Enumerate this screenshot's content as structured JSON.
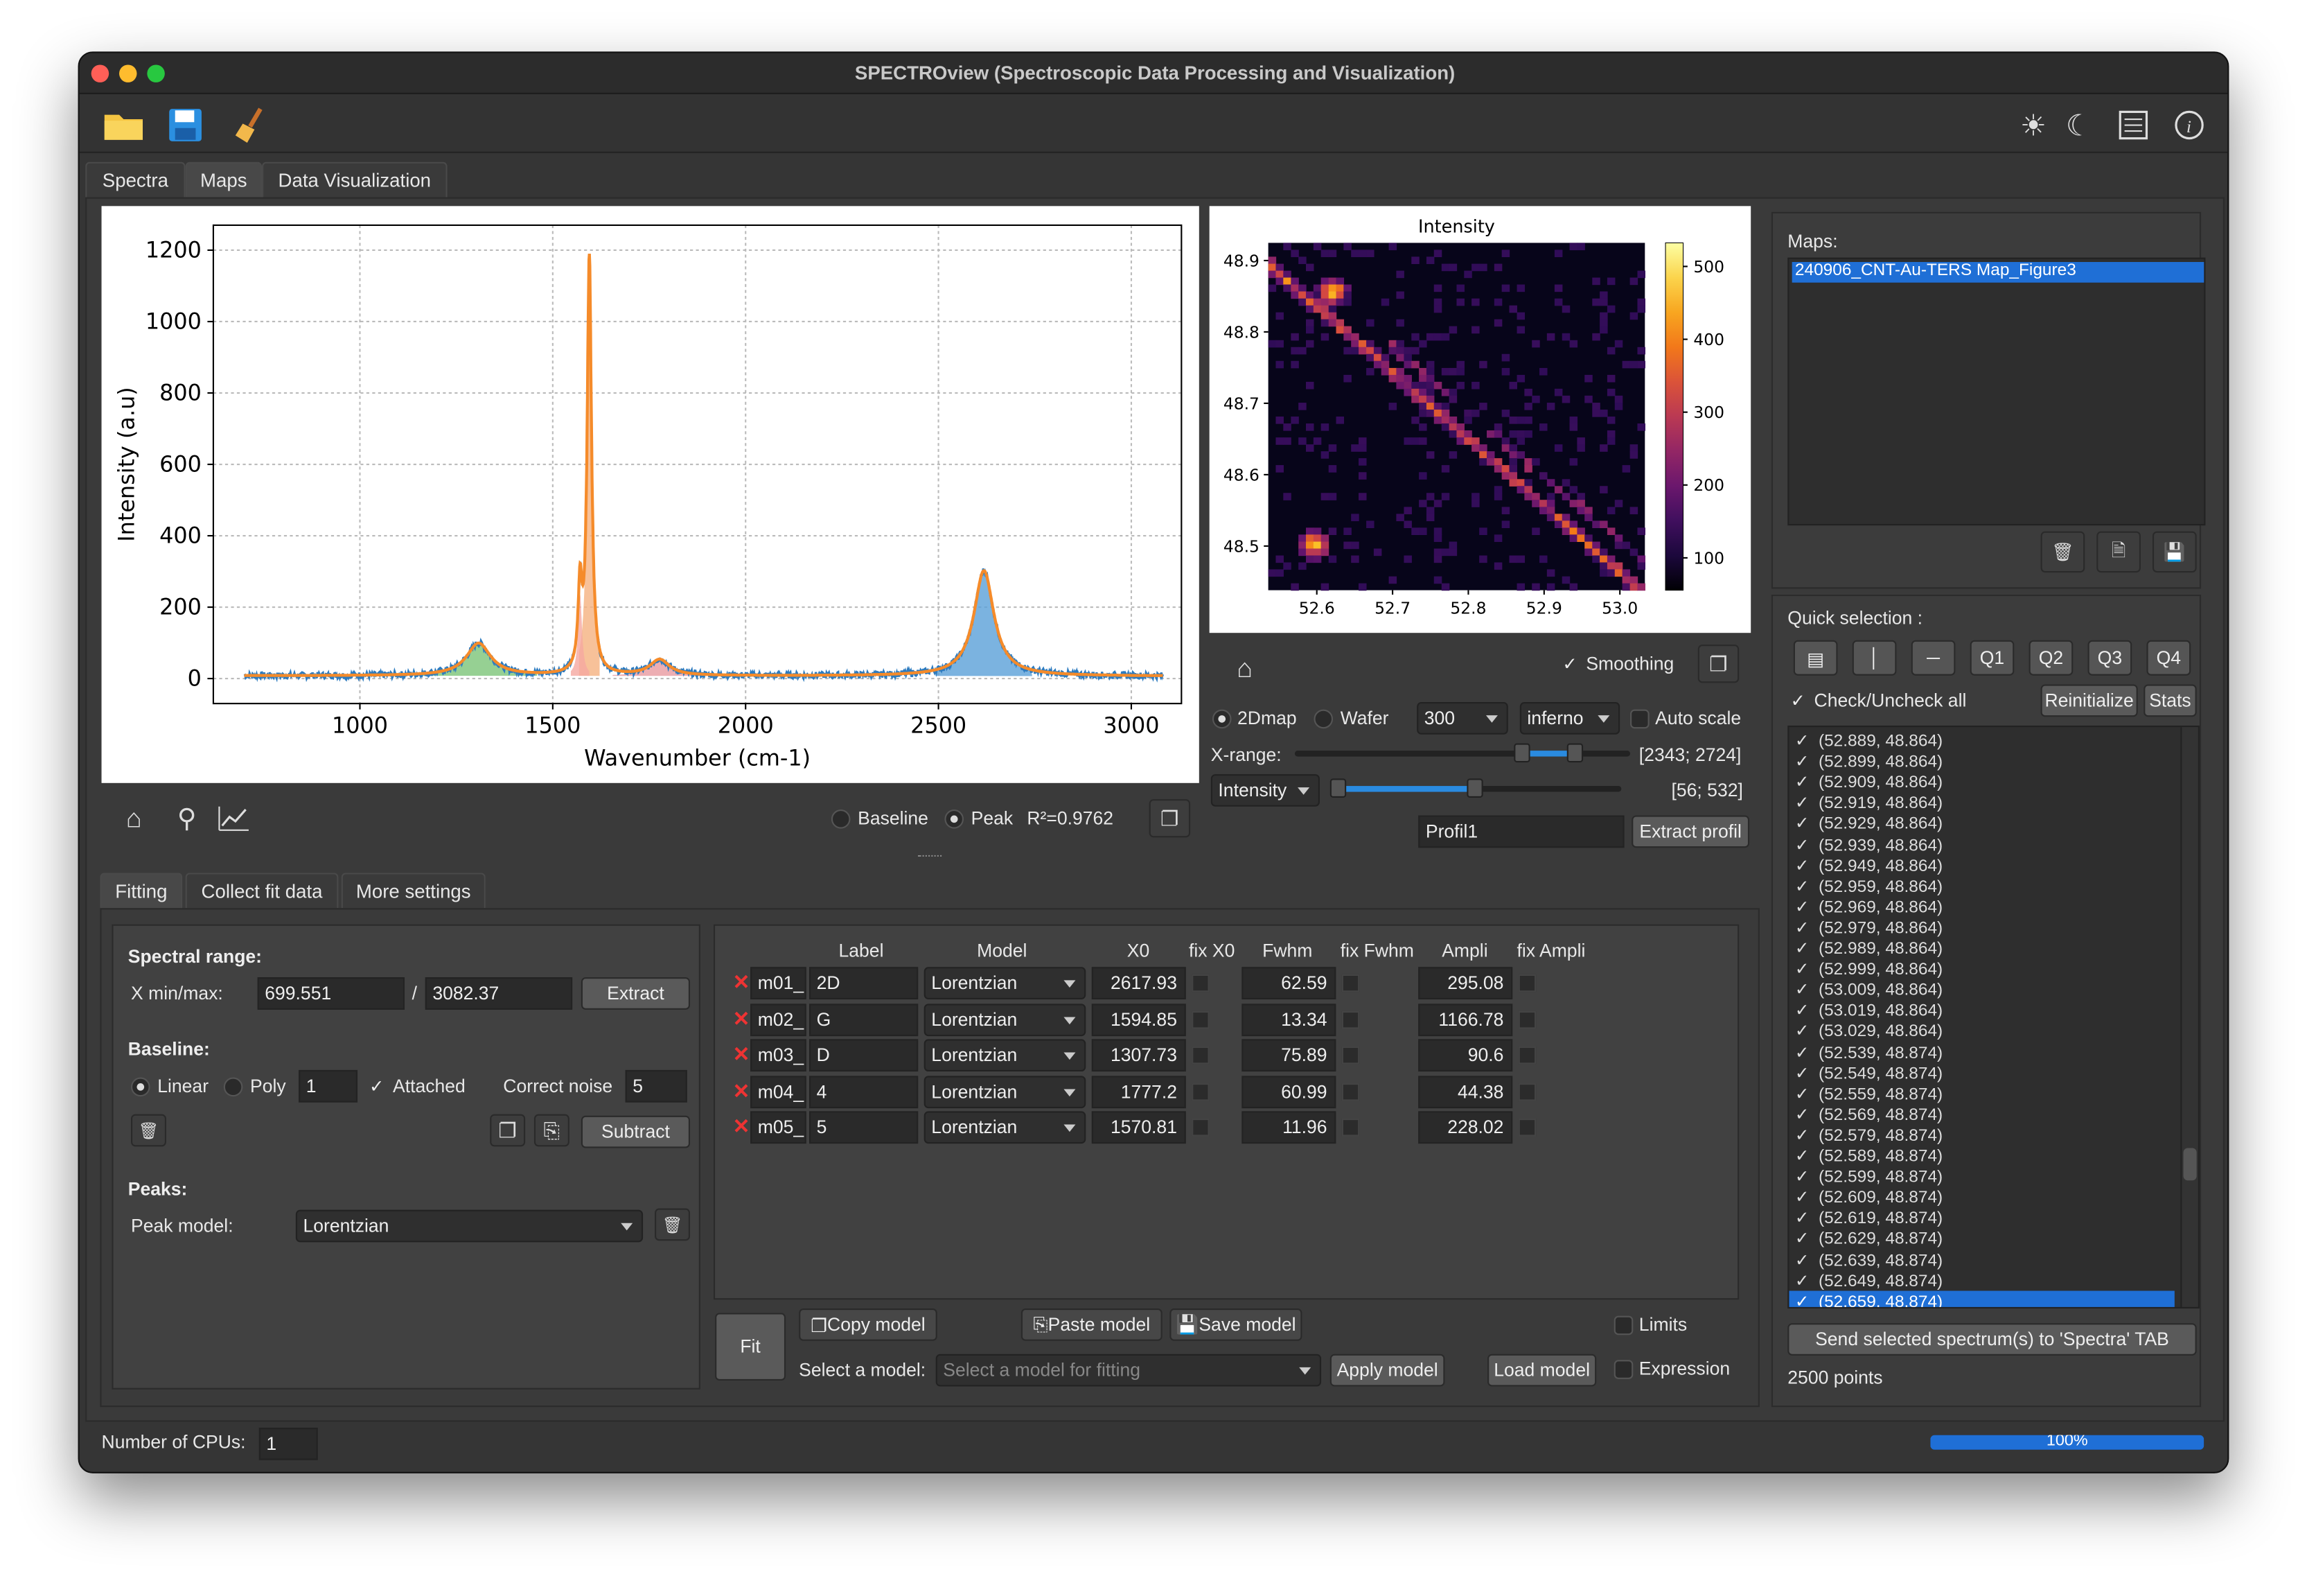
{
  "window": {
    "title": "SPECTROview (Spectroscopic Data Processing and Visualization)"
  },
  "icons": {
    "open": "folder-icon",
    "save": "save-icon",
    "clear": "broom-icon",
    "light": "sun-icon",
    "dark": "moon-icon",
    "log": "log-icon",
    "about": "info-icon"
  },
  "main_tabs": [
    "Spectra",
    "Maps",
    "Data Visualization"
  ],
  "active_main_tab": "Maps",
  "spectrum_plot": {
    "xlabel": "Wavenumber (cm-1)",
    "ylabel": "Intensity (a.u)",
    "xticks": [
      "1000",
      "1500",
      "2000",
      "2500",
      "3000"
    ],
    "yticks": [
      "0",
      "200",
      "400",
      "600",
      "800",
      "1000",
      "1200"
    ]
  },
  "spectrum_toolbar": {
    "baseline_label": "Baseline",
    "peak_label": "Peak",
    "r2": "R²=0.9762"
  },
  "heatmap": {
    "title": "Intensity",
    "yticks": [
      "48.9",
      "48.8",
      "48.7",
      "48.6",
      "48.5"
    ],
    "xticks": [
      "52.6",
      "52.7",
      "52.8",
      "52.9",
      "53.0"
    ],
    "cbar_ticks": [
      "500",
      "400",
      "300",
      "200",
      "100"
    ]
  },
  "map_controls": {
    "smoothing": "Smoothing",
    "twodmap": "2Dmap",
    "wafer": "Wafer",
    "res": "300",
    "cmap": "inferno",
    "autoscale": "Auto scale",
    "xrange_label": "X-range:",
    "xrange_value": "[2343; 2724]",
    "zcombo": "Intensity",
    "zrange_value": "[56; 532]",
    "profile_name": "Profil1",
    "extract_profile": "Extract profil"
  },
  "sub_tabs": [
    "Fitting",
    "Collect fit data",
    "More settings"
  ],
  "fitting": {
    "spectral_range": "Spectral range:",
    "xminmax": "X min/max:",
    "xmin": "699.551",
    "sep": "/",
    "xmax": "3082.37",
    "extract": "Extract",
    "baseline": "Baseline:",
    "linear": "Linear",
    "poly": "Poly",
    "poly_order": "1",
    "attached": "Attached",
    "correct_noise": "Correct noise",
    "noise_val": "5",
    "subtract": "Subtract",
    "peaks": "Peaks:",
    "peak_model_label": "Peak model:",
    "peak_model": "Lorentzian"
  },
  "peak_table": {
    "headers": [
      "Label",
      "Model",
      "X0",
      "fix X0",
      "Fwhm",
      "fix Fwhm",
      "Ampli",
      "fix Ampli"
    ],
    "rows": [
      {
        "id": "m01_",
        "label": "2D",
        "model": "Lorentzian",
        "x0": "2617.93",
        "fwhm": "62.59",
        "ampli": "295.08"
      },
      {
        "id": "m02_",
        "label": "G",
        "model": "Lorentzian",
        "x0": "1594.85",
        "fwhm": "13.34",
        "ampli": "1166.78"
      },
      {
        "id": "m03_",
        "label": "D",
        "model": "Lorentzian",
        "x0": "1307.73",
        "fwhm": "75.89",
        "ampli": "90.6"
      },
      {
        "id": "m04_",
        "label": "4",
        "model": "Lorentzian",
        "x0": "1777.2",
        "fwhm": "60.99",
        "ampli": "44.38"
      },
      {
        "id": "m05_",
        "label": "5",
        "model": "Lorentzian",
        "x0": "1570.81",
        "fwhm": "11.96",
        "ampli": "228.02"
      }
    ]
  },
  "model_bar": {
    "fit": "Fit",
    "copy": "Copy model",
    "paste": "Paste model",
    "save": "Save model",
    "limits": "Limits",
    "select_label": "Select a model:",
    "select_placeholder": "Select a model for fitting",
    "apply": "Apply model",
    "load": "Load model",
    "expression": "Expression"
  },
  "maps_panel": {
    "label": "Maps:",
    "selected": "240906_CNT-Au-TERS Map_Figure3"
  },
  "quick": {
    "label": "Quick selection :",
    "q": [
      "Q1",
      "Q2",
      "Q3",
      "Q4"
    ],
    "check_all": "Check/Uncheck all",
    "reinit": "Reinitialize",
    "stats": "Stats"
  },
  "spectra_list": [
    "(52.889, 48.864)",
    "(52.899, 48.864)",
    "(52.909, 48.864)",
    "(52.919, 48.864)",
    "(52.929, 48.864)",
    "(52.939, 48.864)",
    "(52.949, 48.864)",
    "(52.959, 48.864)",
    "(52.969, 48.864)",
    "(52.979, 48.864)",
    "(52.989, 48.864)",
    "(52.999, 48.864)",
    "(53.009, 48.864)",
    "(53.019, 48.864)",
    "(53.029, 48.864)",
    "(52.539, 48.874)",
    "(52.549, 48.874)",
    "(52.559, 48.874)",
    "(52.569, 48.874)",
    "(52.579, 48.874)",
    "(52.589, 48.874)",
    "(52.599, 48.874)",
    "(52.609, 48.874)",
    "(52.619, 48.874)",
    "(52.629, 48.874)",
    "(52.639, 48.874)",
    "(52.649, 48.874)",
    "(52.659, 48.874)"
  ],
  "send_button": "Send selected spectrum(s) to 'Spectra' TAB",
  "points": "2500 points",
  "status": {
    "cpus_label": "Number of CPUs:",
    "cpus": "1",
    "progress": "100%",
    "progress_value": 1.0
  },
  "colors": {
    "accent": "#1f6fd6",
    "bg": "#353535",
    "fit_line": "#f58b2a",
    "raw": "#2d7bbf"
  }
}
